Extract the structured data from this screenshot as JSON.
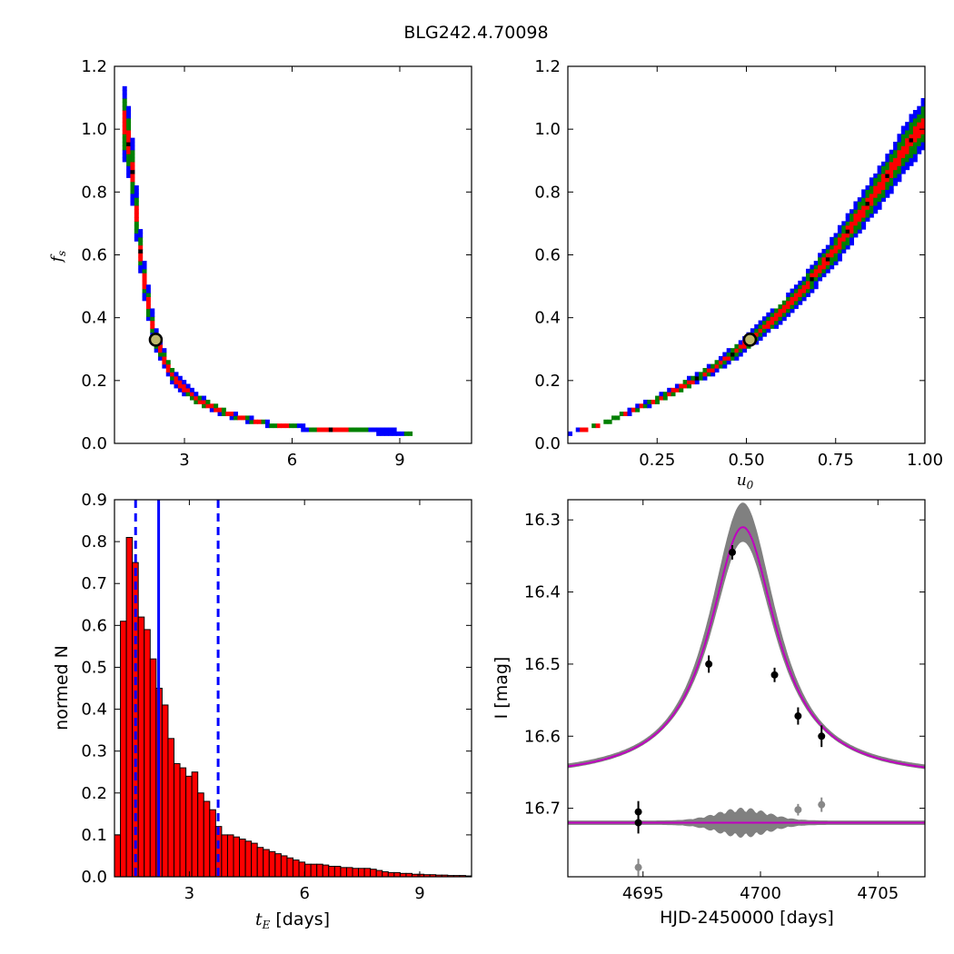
{
  "figure": {
    "title": "BLG242.4.70098"
  },
  "chart_data": [
    {
      "id": "fs-vs-tE",
      "type": "heatmap",
      "xlabel": "",
      "ylabel": "f",
      "ylabel_sub": "s",
      "xlim": [
        1.05,
        11.0
      ],
      "ylim": [
        0.0,
        1.2
      ],
      "xticks": [
        "3",
        "6",
        "9"
      ],
      "xtick_values": [
        3,
        6,
        9
      ],
      "yticks": [
        "0.0",
        "0.2",
        "0.4",
        "0.6",
        "0.8",
        "1.0",
        "1.2"
      ],
      "ytick_values": [
        0.0,
        0.2,
        0.4,
        0.6,
        0.8,
        1.0,
        1.2
      ],
      "contour_colors": {
        "outer": "#0000ff",
        "middle": "#008000",
        "inner": "#ff0000",
        "peak": "#000000"
      },
      "ridge": [
        [
          1.35,
          1.02
        ],
        [
          1.5,
          0.92
        ],
        [
          1.6,
          0.8
        ],
        [
          1.7,
          0.68
        ],
        [
          1.8,
          0.58
        ],
        [
          1.9,
          0.5
        ],
        [
          2.0,
          0.44
        ],
        [
          2.1,
          0.38
        ],
        [
          2.2,
          0.33
        ],
        [
          2.35,
          0.29
        ],
        [
          2.5,
          0.25
        ],
        [
          2.7,
          0.21
        ],
        [
          3.0,
          0.175
        ],
        [
          3.3,
          0.145
        ],
        [
          3.7,
          0.12
        ],
        [
          4.2,
          0.095
        ],
        [
          4.8,
          0.075
        ],
        [
          5.5,
          0.06
        ],
        [
          6.5,
          0.048
        ],
        [
          7.5,
          0.042
        ],
        [
          8.5,
          0.038
        ],
        [
          9.2,
          0.036
        ]
      ],
      "widths": {
        "outer": 0.12,
        "middle": 0.08,
        "inner": 0.04
      },
      "best_fit": {
        "x": 2.2,
        "y": 0.33
      }
    },
    {
      "id": "fs-vs-u0",
      "type": "heatmap",
      "xlabel": "u",
      "xlabel_sub": "0",
      "ylabel": "",
      "xlim": [
        0.0,
        1.0
      ],
      "ylim": [
        0.0,
        1.2
      ],
      "xticks": [
        "0.25",
        "0.50",
        "0.75",
        "1.00"
      ],
      "xtick_values": [
        0.25,
        0.5,
        0.75,
        1.0
      ],
      "yticks": [
        "0.0",
        "0.2",
        "0.4",
        "0.6",
        "0.8",
        "1.0",
        "1.2"
      ],
      "ytick_values": [
        0.0,
        0.2,
        0.4,
        0.6,
        0.8,
        1.0,
        1.2
      ],
      "contour_colors": {
        "outer": "#0000ff",
        "middle": "#008000",
        "inner": "#ff0000",
        "peak": "#000000"
      },
      "ridge": [
        [
          0.0,
          0.035
        ],
        [
          0.05,
          0.045
        ],
        [
          0.1,
          0.065
        ],
        [
          0.15,
          0.09
        ],
        [
          0.2,
          0.115
        ],
        [
          0.25,
          0.14
        ],
        [
          0.3,
          0.17
        ],
        [
          0.35,
          0.2
        ],
        [
          0.4,
          0.235
        ],
        [
          0.45,
          0.275
        ],
        [
          0.5,
          0.32
        ],
        [
          0.55,
          0.37
        ],
        [
          0.6,
          0.42
        ],
        [
          0.65,
          0.48
        ],
        [
          0.7,
          0.55
        ],
        [
          0.75,
          0.62
        ],
        [
          0.8,
          0.7
        ],
        [
          0.85,
          0.78
        ],
        [
          0.9,
          0.86
        ],
        [
          0.95,
          0.95
        ],
        [
          1.0,
          1.02
        ]
      ],
      "widths": {
        "outer": 0.08,
        "middle": 0.055,
        "inner": 0.025
      },
      "best_fit": {
        "x": 0.51,
        "y": 0.33
      }
    },
    {
      "id": "tE-histogram",
      "type": "bar",
      "xlabel": "t",
      "xlabel_sub": "E",
      "xlabel_rest": " [days]",
      "ylabel": "normed N",
      "xlim": [
        1.05,
        10.35
      ],
      "ylim": [
        0.0,
        0.9
      ],
      "xticks": [
        "3",
        "6",
        "9"
      ],
      "xtick_values": [
        3,
        6,
        9
      ],
      "yticks": [
        "0.0",
        "0.1",
        "0.2",
        "0.3",
        "0.4",
        "0.5",
        "0.6",
        "0.7",
        "0.8",
        "0.9"
      ],
      "ytick_values": [
        0.0,
        0.1,
        0.2,
        0.3,
        0.4,
        0.5,
        0.6,
        0.7,
        0.8,
        0.9
      ],
      "bin_start": 1.05,
      "bin_width": 0.155,
      "values": [
        0.1,
        0.61,
        0.81,
        0.75,
        0.62,
        0.59,
        0.52,
        0.45,
        0.41,
        0.33,
        0.27,
        0.26,
        0.24,
        0.25,
        0.2,
        0.18,
        0.16,
        0.12,
        0.1,
        0.1,
        0.095,
        0.09,
        0.085,
        0.08,
        0.07,
        0.065,
        0.06,
        0.055,
        0.05,
        0.045,
        0.04,
        0.035,
        0.03,
        0.03,
        0.03,
        0.028,
        0.025,
        0.025,
        0.022,
        0.022,
        0.02,
        0.02,
        0.02,
        0.018,
        0.015,
        0.012,
        0.01,
        0.01,
        0.008,
        0.008,
        0.006,
        0.006,
        0.005,
        0.005,
        0.004,
        0.004,
        0.003,
        0.003,
        0.003,
        0.002
      ],
      "bar_color": "#ff0000",
      "median_line": 2.2,
      "interval_lines": [
        1.6,
        3.75
      ],
      "line_color": "#0000ff"
    },
    {
      "id": "light-curve",
      "type": "line",
      "xlabel": "HJD-2450000 [days]",
      "ylabel": "I [mag]",
      "xlim": [
        4691.8,
        4707.0
      ],
      "ylim": [
        16.795,
        16.272
      ],
      "xticks": [
        "4695",
        "4700",
        "4705"
      ],
      "xtick_values": [
        4695,
        4700,
        4705
      ],
      "yticks": [
        "16.3",
        "16.4",
        "16.5",
        "16.6",
        "16.7"
      ],
      "ytick_values": [
        16.3,
        16.4,
        16.5,
        16.6,
        16.7
      ],
      "model": {
        "t0": 4699.25,
        "baseline": 16.66,
        "peak": 16.31,
        "tE": 2.2,
        "u0": 0.51,
        "color": "#c000c0"
      },
      "residual_baseline": 16.72,
      "data_points": [
        {
          "t": 4694.8,
          "mag": 16.72,
          "err": 0.015
        },
        {
          "t": 4697.8,
          "mag": 16.5,
          "err": 0.012
        },
        {
          "t": 4698.8,
          "mag": 16.345,
          "err": 0.01
        },
        {
          "t": 4700.6,
          "mag": 16.515,
          "err": 0.01
        },
        {
          "t": 4701.6,
          "mag": 16.572,
          "err": 0.012
        },
        {
          "t": 4702.6,
          "mag": 16.6,
          "err": 0.015
        }
      ],
      "residual_points": [
        {
          "t": 4694.8,
          "mag": 16.705,
          "err": 0.015,
          "color": "#000000"
        },
        {
          "t": 4694.8,
          "mag": 16.782,
          "err": 0.012,
          "color": "#888888"
        },
        {
          "t": 4701.6,
          "mag": 16.702,
          "err": 0.008,
          "color": "#888888"
        },
        {
          "t": 4702.6,
          "mag": 16.695,
          "err": 0.01,
          "color": "#888888"
        }
      ],
      "band_color": "#808080"
    }
  ]
}
